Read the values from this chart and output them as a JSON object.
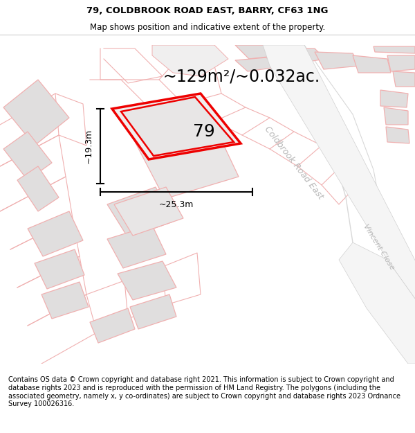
{
  "title_line1": "79, COLDBROOK ROAD EAST, BARRY, CF63 1NG",
  "title_line2": "Map shows position and indicative extent of the property.",
  "area_text": "~129m²/~0.032ac.",
  "label_79": "79",
  "dim_height": "~19.3m",
  "dim_width": "~25.3m",
  "road_label1": "Coldbrook Road East",
  "road_label2": "Vincent Close",
  "footer_text": "Contains OS data © Crown copyright and database right 2021. This information is subject to Crown copyright and database rights 2023 and is reproduced with the permission of HM Land Registry. The polygons (including the associated geometry, namely x, y co-ordinates) are subject to Crown copyright and database rights 2023 Ordnance Survey 100026316.",
  "bg_color": "#ffffff",
  "map_bg": "#ffffff",
  "plot_color_red": "#ee0000",
  "pink_line_color": "#f0b0b0",
  "gray_block_color": "#e0dede",
  "title_fontsize": 9.5,
  "subtitle_fontsize": 8.5,
  "area_fontsize": 17,
  "label_fontsize": 18,
  "dim_fontsize": 9,
  "footer_fontsize": 7.0,
  "road_fontsize": 9,
  "road_color": "#b8b8b8"
}
